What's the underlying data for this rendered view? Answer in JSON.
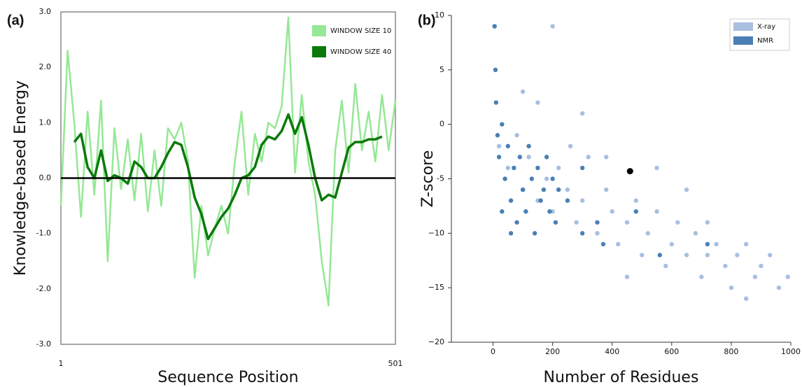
{
  "chart_data": [
    {
      "type": "line",
      "panel_label": "(a)",
      "xlabel": "Sequence Position",
      "ylabel": "Knowledge-based Energy",
      "x": [
        1,
        11,
        21,
        31,
        41,
        51,
        61,
        71,
        81,
        91,
        101,
        111,
        121,
        131,
        141,
        151,
        161,
        171,
        181,
        191,
        201,
        211,
        221,
        231,
        241,
        251,
        261,
        271,
        281,
        291,
        301,
        311,
        321,
        331,
        341,
        351,
        361,
        371,
        381,
        391,
        401,
        411,
        421,
        431,
        441,
        451,
        461,
        471,
        481,
        491,
        501
      ],
      "xlim": [
        1,
        501
      ],
      "xticks": [
        1,
        501
      ],
      "ylim": [
        -3,
        3
      ],
      "yticks": [
        {
          "value": -3,
          "label": "-3.0"
        },
        {
          "value": -2,
          "label": "-2.0"
        },
        {
          "value": -1,
          "label": "-1.0"
        },
        {
          "value": 0,
          "label": "0.0"
        },
        {
          "value": 1,
          "label": "1.0"
        },
        {
          "value": 2,
          "label": "2.0"
        },
        {
          "value": 3,
          "label": "3.0"
        }
      ],
      "zero_line": true,
      "legend": "top-right",
      "series": [
        {
          "name": "WINDOW SIZE 10",
          "color": "#95e895",
          "values": [
            -0.5,
            2.3,
            1.0,
            -0.7,
            1.2,
            -0.3,
            1.4,
            -1.5,
            0.9,
            -0.2,
            0.7,
            -0.4,
            0.8,
            -0.6,
            0.5,
            -0.5,
            0.9,
            0.7,
            1.0,
            0.3,
            -1.8,
            -0.5,
            -1.4,
            -0.9,
            -0.5,
            -1.0,
            0.3,
            1.2,
            -0.3,
            0.8,
            0.3,
            1.0,
            0.9,
            1.3,
            2.9,
            0.1,
            1.5,
            0.3,
            -0.3,
            -1.5,
            -2.3,
            0.5,
            1.4,
            0.1,
            1.7,
            0.5,
            1.2,
            0.3,
            1.5,
            0.5,
            1.4
          ]
        },
        {
          "name": "WINDOW SIZE 40",
          "color": "#0a7a0a",
          "values": [
            null,
            null,
            0.65,
            0.8,
            0.2,
            0.0,
            0.5,
            -0.05,
            0.05,
            0.0,
            -0.1,
            0.3,
            0.2,
            0.0,
            0.0,
            0.2,
            0.45,
            0.65,
            0.6,
            0.2,
            -0.35,
            -0.65,
            -1.1,
            -0.9,
            -0.7,
            -0.55,
            -0.3,
            0.0,
            0.05,
            0.2,
            0.6,
            0.75,
            0.7,
            0.85,
            1.15,
            0.8,
            1.1,
            0.6,
            0.0,
            -0.4,
            -0.3,
            -0.35,
            0.1,
            0.55,
            0.65,
            0.65,
            0.7,
            0.7,
            0.75,
            null,
            null
          ]
        }
      ]
    },
    {
      "type": "scatter",
      "panel_label": "(b)",
      "xlabel": "Number of Residues",
      "ylabel": "Z-score",
      "xlim": [
        -140,
        1000
      ],
      "xticks": [
        0,
        200,
        400,
        600,
        800,
        1000
      ],
      "ylim": [
        -20,
        10
      ],
      "yticks": [
        {
          "value": -20,
          "label": "−20"
        },
        {
          "value": -15,
          "label": "−15"
        },
        {
          "value": -10,
          "label": "−10"
        },
        {
          "value": -5,
          "label": "-5"
        },
        0,
        5,
        10
      ],
      "legend": "top-right",
      "series": [
        {
          "name": "X-ray",
          "color": "#a9bfe0",
          "x": [
            20,
            50,
            80,
            100,
            120,
            150,
            180,
            200,
            220,
            250,
            280,
            300,
            320,
            350,
            380,
            400,
            420,
            450,
            480,
            500,
            520,
            550,
            580,
            600,
            620,
            650,
            680,
            700,
            720,
            750,
            780,
            800,
            820,
            850,
            880,
            900,
            930,
            960,
            990,
            300,
            150,
            200,
            260,
            550,
            650,
            850,
            720,
            450,
            380,
            100
          ],
          "values": [
            -2,
            -4,
            -1,
            -6,
            -3,
            -7,
            -5,
            -8,
            -4,
            -6,
            -9,
            -7,
            -3,
            -10,
            -6,
            -8,
            -11,
            -9,
            -7,
            -12,
            -10,
            -8,
            -13,
            -11,
            -9,
            -12,
            -10,
            -14,
            -12,
            -11,
            -13,
            -15,
            -12,
            -11,
            -14,
            -13,
            -12,
            -15,
            -14,
            1,
            2,
            9,
            -2,
            -4,
            -6,
            -16,
            -9,
            -14,
            -3,
            3
          ]
        },
        {
          "name": "NMR",
          "color": "#4a7fb5",
          "x": [
            5,
            8,
            10,
            15,
            20,
            30,
            40,
            50,
            60,
            70,
            80,
            90,
            100,
            110,
            120,
            130,
            140,
            150,
            160,
            170,
            180,
            190,
            200,
            210,
            220,
            250,
            300,
            350,
            370,
            560,
            720,
            480,
            300,
            30,
            60
          ],
          "values": [
            9,
            5,
            2,
            -1,
            -3,
            0,
            -5,
            -2,
            -7,
            -4,
            -9,
            -3,
            -6,
            -8,
            -2,
            -5,
            -10,
            -4,
            -7,
            -6,
            -3,
            -8,
            -5,
            -9,
            -6,
            -7,
            -4,
            -9,
            -11,
            -12,
            -11,
            -8,
            -10,
            -8,
            -10
          ]
        }
      ],
      "highlight": {
        "x": 460,
        "y": -4.3,
        "color": "#000000"
      }
    }
  ]
}
